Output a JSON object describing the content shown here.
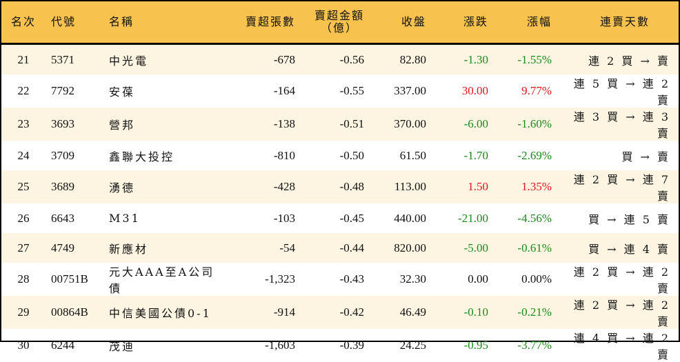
{
  "headers": {
    "rank": "名次",
    "code": "代號",
    "name": "名稱",
    "sell_lots": "賣超張數",
    "sell_amount": "賣超金額",
    "sell_amount_unit": "（億）",
    "close": "收盤",
    "change": "漲跌",
    "change_pct": "漲幅",
    "streak": "連賣天數"
  },
  "colors": {
    "header_bg": "#F8C24E",
    "odd_row_bg": "#FDF5E2",
    "up": "#E0141E",
    "down": "#1A8A1A"
  },
  "rows": [
    {
      "rank": "21",
      "code": "5371",
      "name": "中光電",
      "sell_lots": "-678",
      "sell_amount": "-0.56",
      "close": "82.80",
      "change": "-1.30",
      "change_pct": "-1.55%",
      "dir": "down",
      "streak": "連 2 買 → 賣"
    },
    {
      "rank": "22",
      "code": "7792",
      "name": "安葆",
      "sell_lots": "-164",
      "sell_amount": "-0.55",
      "close": "337.00",
      "change": "30.00",
      "change_pct": "9.77%",
      "dir": "up",
      "streak": "連 5 買 → 連 2 賣"
    },
    {
      "rank": "23",
      "code": "3693",
      "name": "營邦",
      "sell_lots": "-138",
      "sell_amount": "-0.51",
      "close": "370.00",
      "change": "-6.00",
      "change_pct": "-1.60%",
      "dir": "down",
      "streak": "連 3 買 → 連 3 賣"
    },
    {
      "rank": "24",
      "code": "3709",
      "name": "鑫聯大投控",
      "sell_lots": "-810",
      "sell_amount": "-0.50",
      "close": "61.50",
      "change": "-1.70",
      "change_pct": "-2.69%",
      "dir": "down",
      "streak": "買 → 賣"
    },
    {
      "rank": "25",
      "code": "3689",
      "name": "湧德",
      "sell_lots": "-428",
      "sell_amount": "-0.48",
      "close": "113.00",
      "change": "1.50",
      "change_pct": "1.35%",
      "dir": "up",
      "streak": "連 2 買 → 連 7 賣"
    },
    {
      "rank": "26",
      "code": "6643",
      "name": "M31",
      "sell_lots": "-103",
      "sell_amount": "-0.45",
      "close": "440.00",
      "change": "-21.00",
      "change_pct": "-4.56%",
      "dir": "down",
      "streak": "買 → 連 5 賣"
    },
    {
      "rank": "27",
      "code": "4749",
      "name": "新應材",
      "sell_lots": "-54",
      "sell_amount": "-0.44",
      "close": "820.00",
      "change": "-5.00",
      "change_pct": "-0.61%",
      "dir": "down",
      "streak": "買 → 連 4 賣"
    },
    {
      "rank": "28",
      "code": "00751B",
      "name": "元大AAA至A公司債",
      "sell_lots": "-1,323",
      "sell_amount": "-0.43",
      "close": "32.30",
      "change": "0.00",
      "change_pct": "0.00%",
      "dir": "flat",
      "streak": "連 2 買 → 連 2 賣"
    },
    {
      "rank": "29",
      "code": "00864B",
      "name": "中信美國公債0-1",
      "sell_lots": "-914",
      "sell_amount": "-0.42",
      "close": "46.49",
      "change": "-0.10",
      "change_pct": "-0.21%",
      "dir": "down",
      "streak": "連 2 買 → 連 2 賣"
    },
    {
      "rank": "30",
      "code": "6244",
      "name": "茂迪",
      "sell_lots": "-1,603",
      "sell_amount": "-0.39",
      "close": "24.25",
      "change": "-0.95",
      "change_pct": "-3.77%",
      "dir": "down",
      "streak": "連 4 買 → 連 2 賣"
    }
  ]
}
